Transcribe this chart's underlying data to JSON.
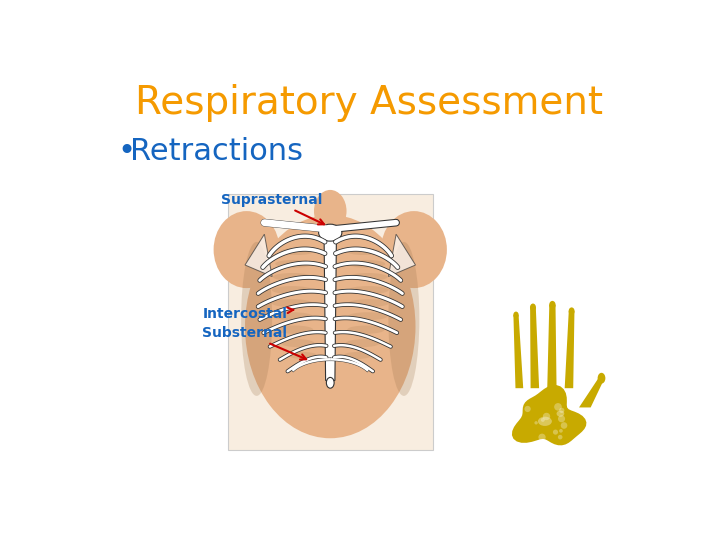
{
  "title": "Respiratory Assessment",
  "title_color": "#F59A00",
  "title_fontsize": 28,
  "bullet_text": "Retractions",
  "bullet_color": "#1565C0",
  "bullet_fontsize": 22,
  "label_suprasternal": "Suprasternal",
  "label_intercostal": "Intercostal",
  "label_substernal": "Substernal",
  "label_color": "#1565C0",
  "label_fontsize": 10,
  "arrow_color": "#CC0000",
  "background_color": "#FFFFFF",
  "hand_color": "#C8AA00",
  "skin_color": "#D4956A",
  "skin_light": "#E8B48A",
  "bone_color": "#FFFFFF",
  "bone_edge": "#333333",
  "shadow_color": "#A07850"
}
